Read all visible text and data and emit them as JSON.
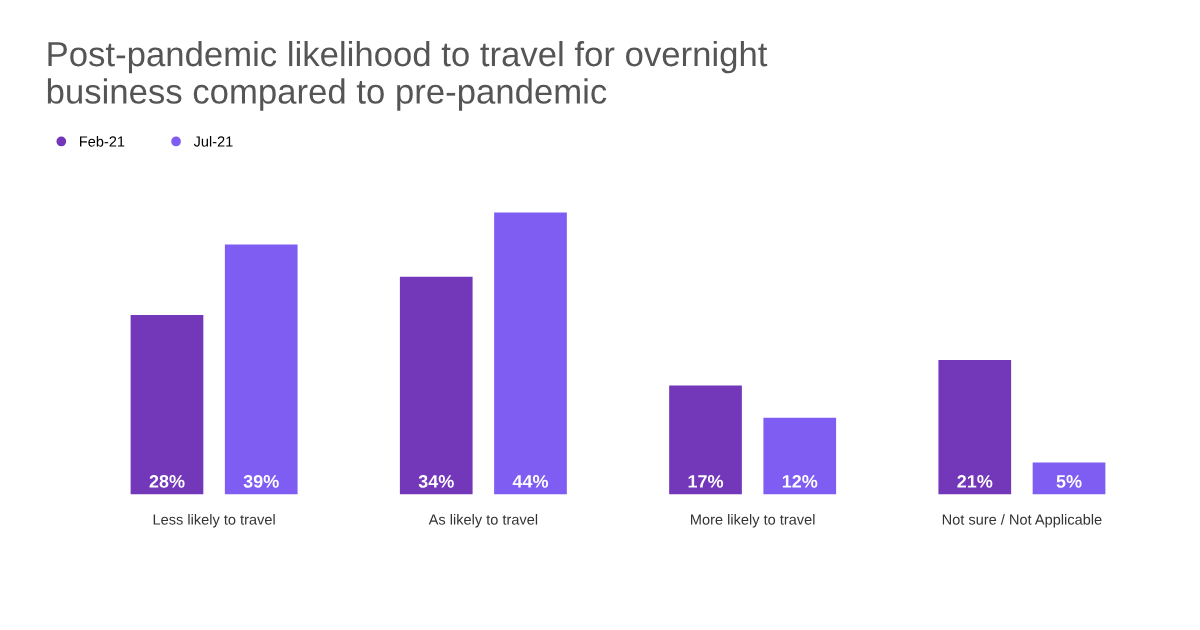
{
  "chart_data": {
    "type": "bar",
    "title": "Post-pandemic likelihood to travel for overnight\nbusiness compared to pre-pandemic",
    "categories": [
      "Less likely to travel",
      "As likely to travel",
      "More likely to travel",
      "Not sure / Not Applicable"
    ],
    "series": [
      {
        "name": "Feb-21",
        "color": "#7337b9",
        "values": [
          28,
          34,
          17,
          21
        ],
        "value_labels": [
          "28%",
          "34%",
          "17%",
          "21%"
        ]
      },
      {
        "name": "Jul-21",
        "color": "#7f5cf2",
        "values": [
          39,
          44,
          12,
          5
        ],
        "value_labels": [
          "39%",
          "44%",
          "12%",
          "5%"
        ]
      }
    ],
    "legend": "top left",
    "grid": false
  }
}
